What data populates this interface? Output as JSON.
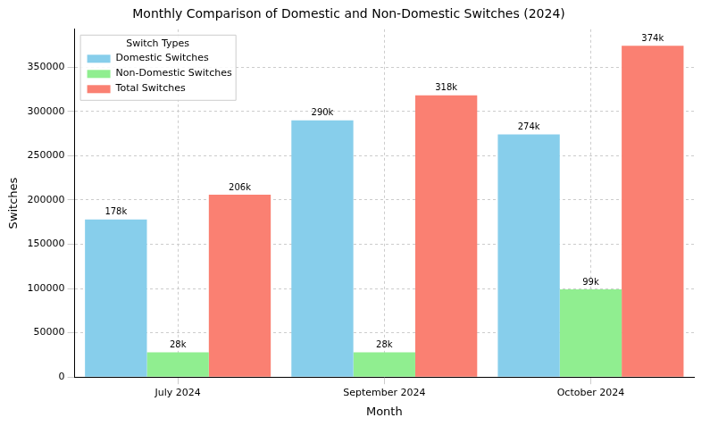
{
  "chart_data": {
    "type": "bar",
    "title": "Monthly Comparison of Domestic and Non-Domestic Switches (2024)",
    "x_label": "Month",
    "y_label": "Switches",
    "legend_title": "Switch Types",
    "categories": [
      "July 2024",
      "September 2024",
      "October 2024"
    ],
    "series": [
      {
        "name": "Domestic Switches",
        "color": "#87ceeb",
        "values": [
          178000,
          290000,
          274000
        ],
        "value_labels": [
          "178k",
          "290k",
          "274k"
        ]
      },
      {
        "name": "Non-Domestic Switches",
        "color": "#90ee90",
        "values": [
          28000,
          28000,
          99000
        ],
        "value_labels": [
          "28k",
          "28k",
          "99k"
        ]
      },
      {
        "name": "Total Switches",
        "color": "#fa8072",
        "values": [
          206000,
          318000,
          374000
        ],
        "value_labels": [
          "206k",
          "318k",
          "374k"
        ]
      }
    ],
    "ylim": [
      0,
      392700
    ],
    "yticks": [
      0,
      50000,
      100000,
      150000,
      200000,
      250000,
      300000,
      350000
    ],
    "grid": true,
    "legend": "upper left",
    "data_labels": true
  }
}
